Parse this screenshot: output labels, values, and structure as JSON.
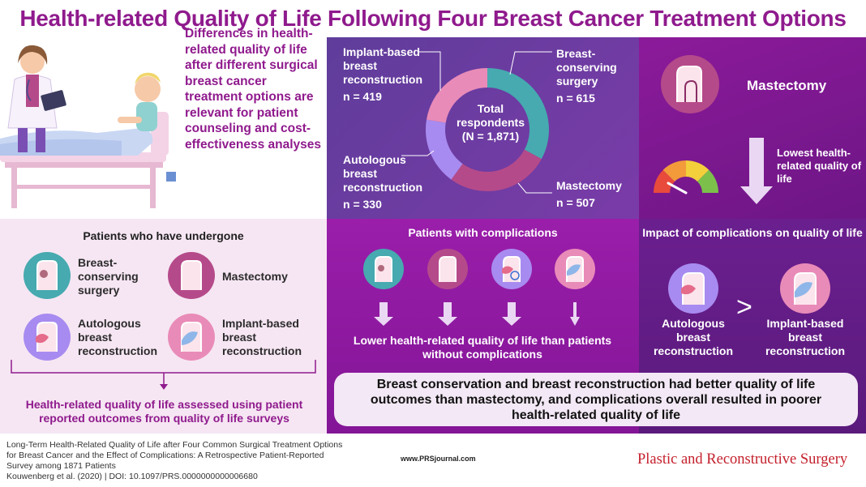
{
  "title": "Health-related Quality of Life Following Four Breast Cancer Treatment Options",
  "intro_text": "Differences in health-related quality of life after different surgical breast cancer treatment options are relevant for patient counseling and cost-effectiveness analyses",
  "respondents": {
    "center_label": "Total respondents",
    "center_n": "(N = 1,871)",
    "groups": [
      {
        "label": "Implant-based breast reconstruction",
        "n": "n = 419"
      },
      {
        "label": "Breast-conserving surgery",
        "n": "n = 615"
      },
      {
        "label": "Autologous breast reconstruction",
        "n": "n = 330"
      },
      {
        "label": "Mastectomy",
        "n": "n = 507"
      }
    ]
  },
  "mastectomy_panel": {
    "title": "Mastectomy",
    "lowest_text": "Lowest health-related quality of life"
  },
  "undergone": {
    "title": "Patients who have undergone",
    "items": [
      {
        "label": "Breast-conserving surgery"
      },
      {
        "label": "Mastectomy"
      },
      {
        "label": "Autologous breast reconstruction"
      },
      {
        "label": "Implant-based breast reconstruction"
      }
    ],
    "assessed_text": "Health-related quality of life assessed using patient reported outcomes from quality of life surveys"
  },
  "complications": {
    "title": "Patients with complications",
    "lower_text": "Lower health-related quality of life than patients without complications"
  },
  "impact": {
    "title": "Impact of complications on quality of life",
    "left_label": "Autologous breast reconstruction",
    "comparator": ">",
    "right_label": "Implant-based breast reconstruction"
  },
  "conclusion": "Breast conservation and breast reconstruction had better quality of life outcomes than mastectomy, and complications overall resulted in poorer health-related quality of life",
  "footer": {
    "citation": "Long-Term Health-Related Quality of Life after Four Common Surgical Treatment Options for Breast Cancer and the Effect of Complications: A Retrospective Patient-Reported Survey among 1871 Patients",
    "authors": "Kouwenberg et al. (2020)  |  DOI: 10.1097/PRS.0000000000006680",
    "url": "www.PRSjournal.com",
    "journal": "Plastic and Reconstructive Surgery"
  },
  "colors": {
    "brand_purple": "#8f1a8d",
    "breast_conserving": "#46aab0",
    "mastectomy": "#b54a8a",
    "autologous": "#a88bf0",
    "implant": "#e98bb8",
    "journal_red": "#c4202c"
  },
  "icons": [
    "doctor-patient-illustration",
    "breast-icon",
    "gauge-icon",
    "down-arrow-icon"
  ]
}
